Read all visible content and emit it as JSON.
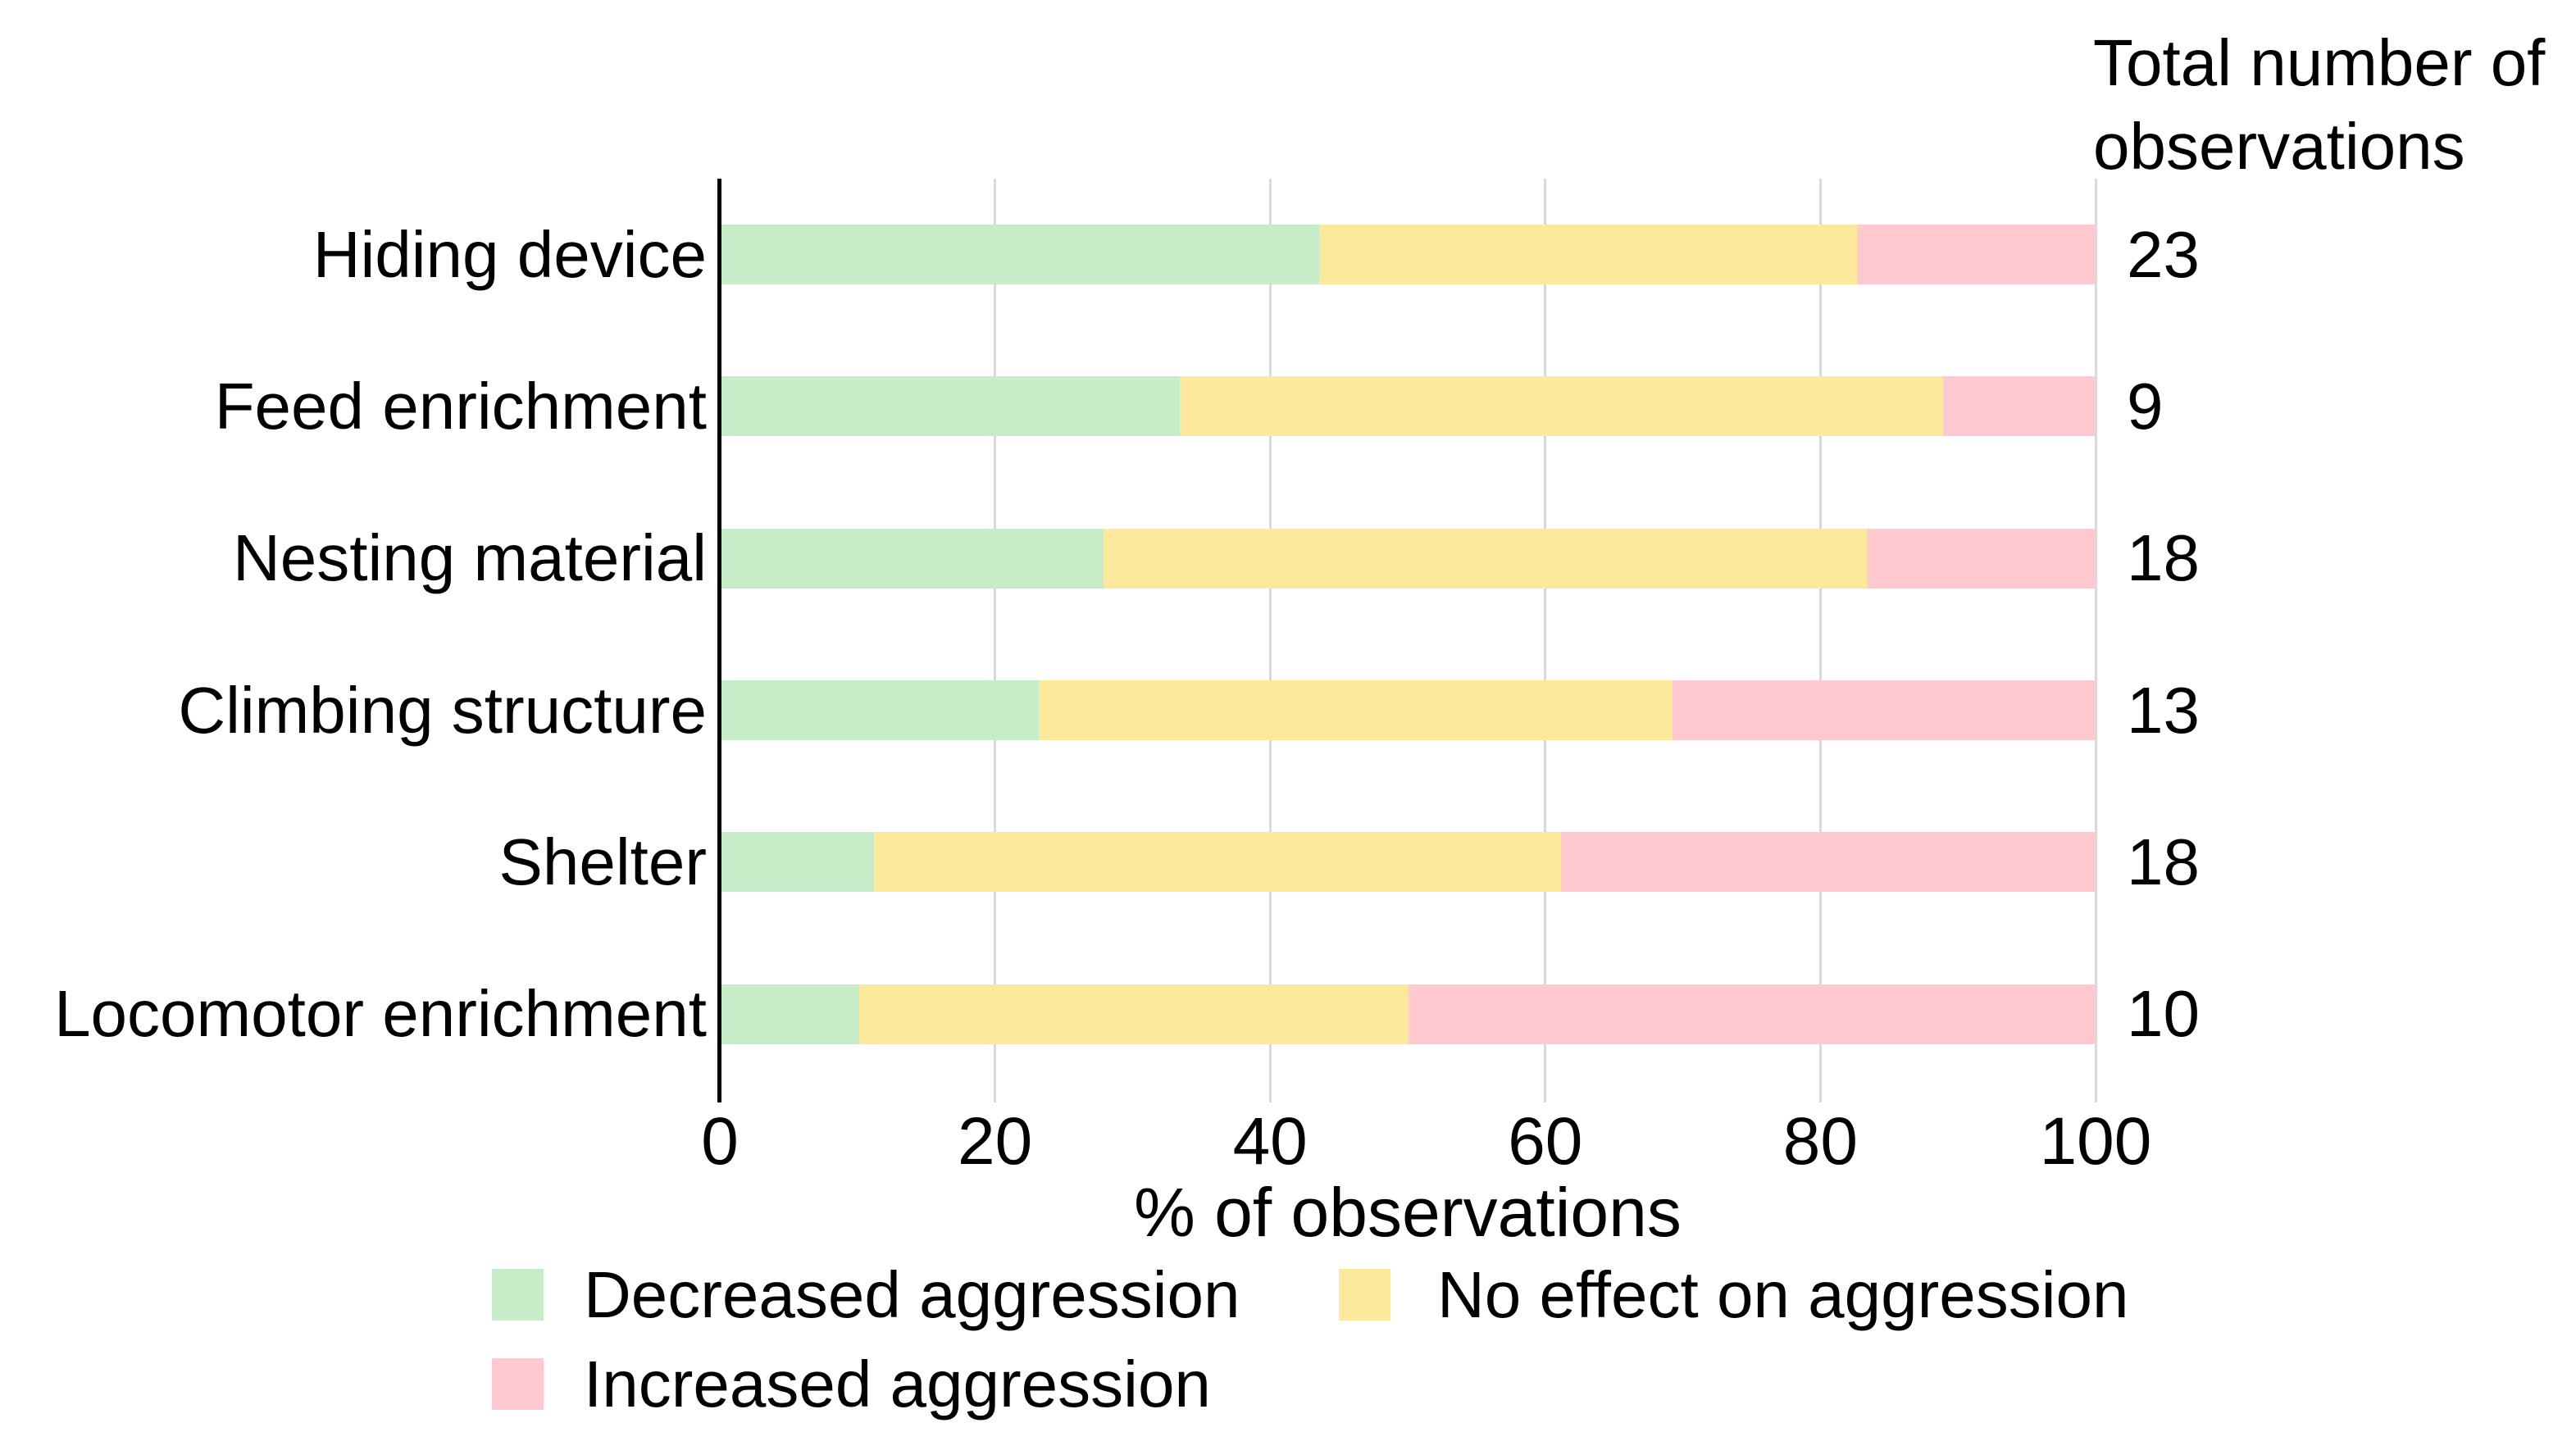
{
  "header": {
    "line1": "Total number of",
    "line2": "observations"
  },
  "axis": {
    "title": "% of observations",
    "ticks": [
      "0",
      "20",
      "40",
      "60",
      "80",
      "100"
    ]
  },
  "colors": {
    "decreased": "#c6ecc8",
    "no_effect": "#fce99c",
    "increased": "#ffc9cf",
    "gridline": "#d9d9d9",
    "axis_line": "#000000",
    "text": "#000000"
  },
  "legend": [
    {
      "label": "Decreased aggression",
      "color": "#c6ecc8"
    },
    {
      "label": "No effect on aggression",
      "color": "#fce99c"
    },
    {
      "label": "Increased aggression",
      "color": "#ffc9cf"
    }
  ],
  "chart_data": {
    "type": "bar",
    "orientation": "horizontal",
    "stacked": true,
    "percent_scale": true,
    "xlabel": "% of observations",
    "xlim": [
      0,
      100
    ],
    "x_ticks": [
      0,
      20,
      40,
      60,
      80,
      100
    ],
    "grid": "vertical-only",
    "legend_position": "bottom",
    "right_column_header": "Total number of observations",
    "categories": [
      "Hiding device",
      "Feed enrichment",
      "Nesting material",
      "Climbing structure",
      "Shelter",
      "Locomotor enrichment"
    ],
    "totals": [
      23,
      9,
      18,
      13,
      18,
      10
    ],
    "series": [
      {
        "name": "Decreased aggression",
        "color": "#c6ecc8",
        "counts": [
          10,
          3,
          5,
          3,
          2,
          1
        ],
        "values_pct": [
          43.5,
          33.3,
          27.8,
          23.1,
          11.1,
          10.0
        ]
      },
      {
        "name": "No effect on aggression",
        "color": "#fce99c",
        "counts": [
          9,
          5,
          10,
          6,
          9,
          4
        ],
        "values_pct": [
          39.1,
          55.6,
          55.6,
          46.2,
          50.0,
          40.0
        ]
      },
      {
        "name": "Increased aggression",
        "color": "#ffc9cf",
        "counts": [
          4,
          1,
          3,
          4,
          7,
          5
        ],
        "values_pct": [
          17.4,
          11.1,
          16.7,
          30.8,
          38.9,
          50.0
        ]
      }
    ]
  }
}
